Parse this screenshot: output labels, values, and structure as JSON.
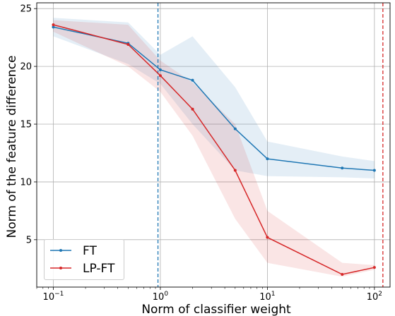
{
  "chart_data": {
    "type": "line",
    "xscale": "log",
    "xlim": [
      0.07,
      140
    ],
    "ylim": [
      0.9,
      25.5
    ],
    "grid": true,
    "xlabel": "Norm of classifier weight",
    "ylabel": "Norm of the feature difference",
    "yticks": [
      5,
      10,
      15,
      20,
      25
    ],
    "xticks": [
      0.1,
      1,
      10,
      100
    ],
    "xtick_labels": [
      {
        "base": "10",
        "exp": "−1"
      },
      {
        "base": "10",
        "exp": "0"
      },
      {
        "base": "10",
        "exp": "1"
      },
      {
        "base": "10",
        "exp": "2"
      }
    ],
    "legend_position": "lower-left",
    "series": [
      {
        "name": "FT",
        "color": "#1f77b4",
        "x": [
          0.1,
          0.5,
          1,
          2,
          5,
          10,
          50,
          100
        ],
        "y": [
          23.4,
          22.0,
          19.7,
          18.8,
          14.6,
          12.0,
          11.2,
          11.0
        ],
        "band_upper": [
          24.2,
          23.8,
          21.0,
          22.6,
          18.2,
          13.5,
          12.2,
          11.8
        ],
        "band_lower": [
          22.6,
          20.2,
          18.5,
          15.0,
          11.0,
          10.5,
          10.4,
          10.3
        ]
      },
      {
        "name": "LP-FT",
        "color": "#d62728",
        "x": [
          0.1,
          0.5,
          1,
          2,
          5,
          10,
          50,
          100
        ],
        "y": [
          23.6,
          21.9,
          19.2,
          16.3,
          11.0,
          5.2,
          2.0,
          2.6
        ],
        "band_upper": [
          24.0,
          23.6,
          20.5,
          18.6,
          15.0,
          7.5,
          3.0,
          2.8
        ],
        "band_lower": [
          23.0,
          20.0,
          17.8,
          14.0,
          6.8,
          3.0,
          1.8,
          2.4
        ]
      }
    ],
    "vlines": [
      {
        "x": 0.95,
        "color": "#1f77b4",
        "style": "dashed"
      },
      {
        "x": 120,
        "color": "#d62728",
        "style": "dashed"
      }
    ]
  }
}
